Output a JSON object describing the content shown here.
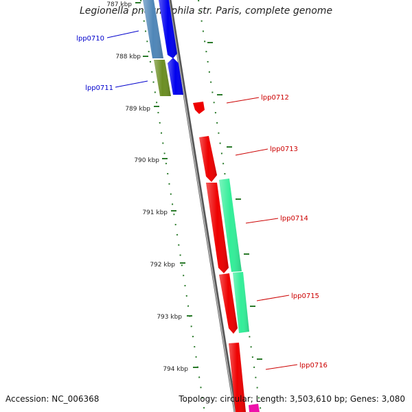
{
  "title": "Legionella pneumophila str. Paris, complete genome",
  "footer": {
    "accession": "Accession: NC_006368",
    "genome_info": "Topology: circular; Length: 3,503,610 bp; Genes: 3,080"
  },
  "scale_ticks": [
    {
      "label": "787 kbp"
    },
    {
      "label": "788 kbp"
    },
    {
      "label": "789 kbp"
    },
    {
      "label": "790 kbp"
    },
    {
      "label": "791 kbp"
    },
    {
      "label": "792 kbp"
    },
    {
      "label": "793 kbp"
    },
    {
      "label": "794 kbp"
    }
  ],
  "genes": [
    {
      "label": "lpp0710",
      "strand": "forward",
      "color": "#0000dd"
    },
    {
      "label": "lpp0711",
      "strand": "forward",
      "color": "#0000dd"
    },
    {
      "label": "lpp0712",
      "strand": "reverse",
      "color": "#dd0000"
    },
    {
      "label": "lpp0713",
      "strand": "reverse",
      "color": "#dd0000"
    },
    {
      "label": "lpp0714",
      "strand": "reverse",
      "color": "#dd0000"
    },
    {
      "label": "lpp0715",
      "strand": "reverse",
      "color": "#dd0000"
    },
    {
      "label": "lpp0716",
      "strand": "reverse",
      "color": "#dd0000"
    }
  ],
  "colors": {
    "forward_cds": "#0000ee",
    "reverse_cds": "#ee0000",
    "cog_steelblue": "#4f86b8",
    "cog_olive": "#6b8e23",
    "cog_green": "#33ee99",
    "cog_magenta": "#ee11aa",
    "backbone": "#888888",
    "tick": "#2a7a2a"
  }
}
